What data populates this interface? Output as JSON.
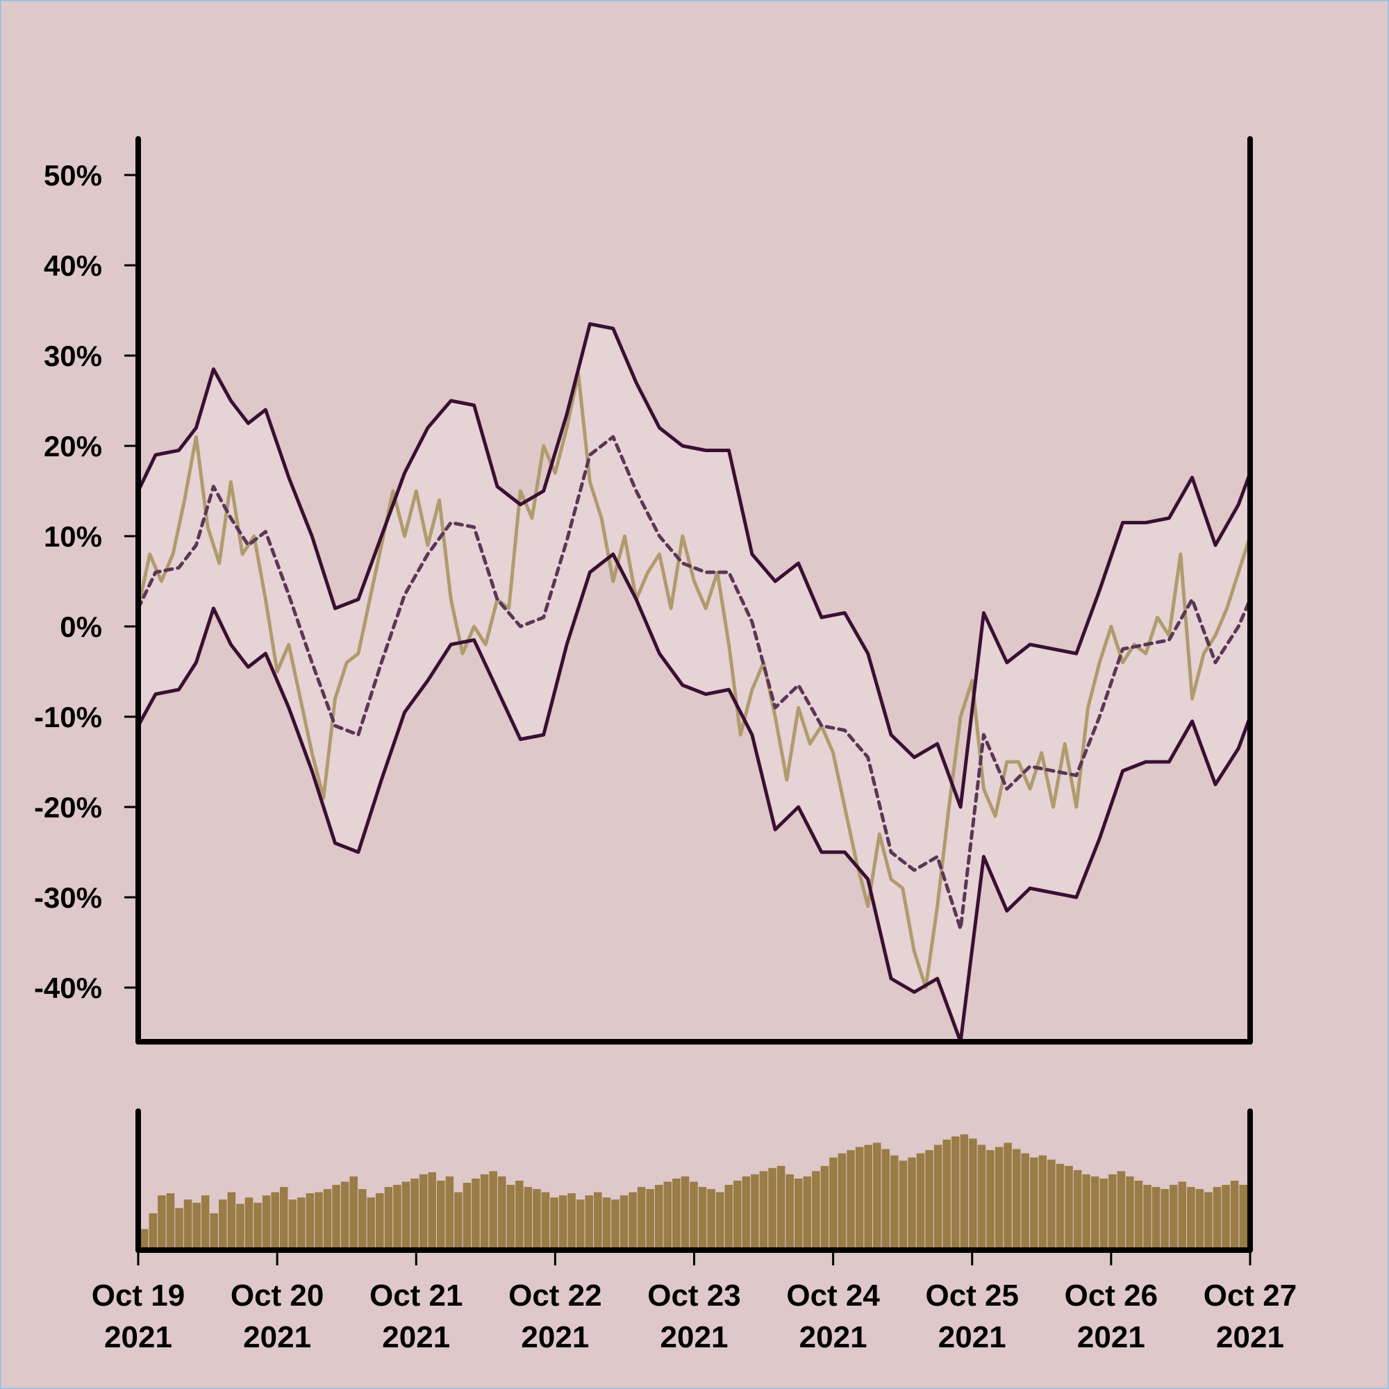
{
  "chart_data": [
    {
      "type": "line",
      "title": "",
      "xlabel": "",
      "ylabel": "",
      "ylim": [
        -46,
        54
      ],
      "xlim": [
        "2021-10-19",
        "2021-10-27"
      ],
      "grid": false,
      "legend": "none",
      "y_ticks": [
        50,
        40,
        30,
        20,
        10,
        0,
        -10,
        -20,
        -30,
        -40
      ],
      "y_tick_labels": [
        "50%",
        "40%",
        "30%",
        "20%",
        "10%",
        "0%",
        "-10%",
        "-20%",
        "-30%",
        "-40%"
      ],
      "x_ticks": [
        "2021-10-19",
        "2021-10-20",
        "2021-10-21",
        "2021-10-22",
        "2021-10-23",
        "2021-10-24",
        "2021-10-25",
        "2021-10-26",
        "2021-10-27"
      ],
      "x_tick_labels": [
        [
          "Oct 19",
          "2021"
        ],
        [
          "Oct 20",
          "2021"
        ],
        [
          "Oct 21",
          "2021"
        ],
        [
          "Oct 22",
          "2021"
        ],
        [
          "Oct 23",
          "2021"
        ],
        [
          "Oct 24",
          "2021"
        ],
        [
          "Oct 25",
          "2021"
        ],
        [
          "Oct 26",
          "2021"
        ],
        [
          "Oct 27",
          "2021"
        ]
      ],
      "band": {
        "color": "#e6d3d5",
        "x": [
          "2021-10-19 00:00",
          "2021-10-19 03:00",
          "2021-10-19 07:00",
          "2021-10-19 10:00",
          "2021-10-19 13:00",
          "2021-10-19 16:00",
          "2021-10-19 19:00",
          "2021-10-19 22:00",
          "2021-10-20 02:00",
          "2021-10-20 06:00",
          "2021-10-20 10:00",
          "2021-10-20 14:00",
          "2021-10-20 18:00",
          "2021-10-20 22:00",
          "2021-10-21 02:00",
          "2021-10-21 06:00",
          "2021-10-21 10:00",
          "2021-10-21 14:00",
          "2021-10-21 18:00",
          "2021-10-21 22:00",
          "2021-10-22 02:00",
          "2021-10-22 06:00",
          "2021-10-22 10:00",
          "2021-10-22 14:00",
          "2021-10-22 18:00",
          "2021-10-22 22:00",
          "2021-10-23 02:00",
          "2021-10-23 06:00",
          "2021-10-23 10:00",
          "2021-10-23 14:00",
          "2021-10-23 18:00",
          "2021-10-23 22:00",
          "2021-10-24 02:00",
          "2021-10-24 06:00",
          "2021-10-24 10:00",
          "2021-10-24 14:00",
          "2021-10-24 18:00",
          "2021-10-24 22:00",
          "2021-10-25 02:00",
          "2021-10-25 06:00",
          "2021-10-25 10:00",
          "2021-10-25 14:00",
          "2021-10-25 18:00",
          "2021-10-25 22:00",
          "2021-10-26 02:00",
          "2021-10-26 06:00",
          "2021-10-26 10:00",
          "2021-10-26 14:00",
          "2021-10-26 18:00",
          "2021-10-26 22:00",
          "2021-10-27 00:00"
        ],
        "upper": [
          15,
          19,
          19.5,
          22,
          28.5,
          25,
          22.5,
          24,
          16.5,
          10,
          2,
          3,
          10,
          17,
          22,
          25,
          24.5,
          15.5,
          13.5,
          15,
          23.5,
          33.5,
          33,
          27,
          22,
          20,
          19.5,
          19.5,
          8,
          5,
          7,
          1,
          1.5,
          -3,
          -12,
          -14.5,
          -13,
          -20,
          1.5,
          -4,
          -2,
          -2.5,
          -3,
          4,
          11.5,
          11.5,
          12,
          16.5,
          9,
          13.5,
          17
        ],
        "lower": [
          -11,
          -7.5,
          -7,
          -4,
          2,
          -2,
          -4.5,
          -3,
          -9,
          -16,
          -24,
          -25,
          -17,
          -9.5,
          -6,
          -2,
          -1.5,
          -7,
          -12.5,
          -12,
          -2,
          6,
          8,
          3,
          -3,
          -6.5,
          -7.5,
          -7,
          -12,
          -22.5,
          -20,
          -25,
          -25,
          -28,
          -39,
          -40.5,
          -39,
          -46,
          -25.5,
          -31.5,
          -29,
          -29.5,
          -30,
          -23.5,
          -16,
          -15,
          -15,
          -10.5,
          -17.5,
          -13.5,
          -10
        ]
      },
      "series": [
        {
          "color": "#b09b6e",
          "style": "solid",
          "x": [
            "2021-10-19 00:00",
            "2021-10-19 02:00",
            "2021-10-19 04:00",
            "2021-10-19 06:00",
            "2021-10-19 08:00",
            "2021-10-19 10:00",
            "2021-10-19 12:00",
            "2021-10-19 14:00",
            "2021-10-19 16:00",
            "2021-10-19 18:00",
            "2021-10-19 20:00",
            "2021-10-19 22:00",
            "2021-10-20 00:00",
            "2021-10-20 02:00",
            "2021-10-20 04:00",
            "2021-10-20 06:00",
            "2021-10-20 08:00",
            "2021-10-20 10:00",
            "2021-10-20 12:00",
            "2021-10-20 14:00",
            "2021-10-20 16:00",
            "2021-10-20 18:00",
            "2021-10-20 20:00",
            "2021-10-20 22:00",
            "2021-10-21 00:00",
            "2021-10-21 02:00",
            "2021-10-21 04:00",
            "2021-10-21 06:00",
            "2021-10-21 08:00",
            "2021-10-21 10:00",
            "2021-10-21 12:00",
            "2021-10-21 14:00",
            "2021-10-21 16:00",
            "2021-10-21 18:00",
            "2021-10-21 20:00",
            "2021-10-21 22:00",
            "2021-10-22 00:00",
            "2021-10-22 02:00",
            "2021-10-22 04:00",
            "2021-10-22 06:00",
            "2021-10-22 08:00",
            "2021-10-22 10:00",
            "2021-10-22 12:00",
            "2021-10-22 14:00",
            "2021-10-22 16:00",
            "2021-10-22 18:00",
            "2021-10-22 20:00",
            "2021-10-22 22:00",
            "2021-10-23 00:00",
            "2021-10-23 02:00",
            "2021-10-23 04:00",
            "2021-10-23 06:00",
            "2021-10-23 08:00",
            "2021-10-23 10:00",
            "2021-10-23 12:00",
            "2021-10-23 14:00",
            "2021-10-23 16:00",
            "2021-10-23 18:00",
            "2021-10-23 20:00",
            "2021-10-23 22:00",
            "2021-10-24 00:00",
            "2021-10-24 02:00",
            "2021-10-24 04:00",
            "2021-10-24 06:00",
            "2021-10-24 08:00",
            "2021-10-24 10:00",
            "2021-10-24 12:00",
            "2021-10-24 14:00",
            "2021-10-24 16:00",
            "2021-10-24 18:00",
            "2021-10-24 20:00",
            "2021-10-24 22:00",
            "2021-10-25 00:00",
            "2021-10-25 02:00",
            "2021-10-25 04:00",
            "2021-10-25 06:00",
            "2021-10-25 08:00",
            "2021-10-25 10:00",
            "2021-10-25 12:00",
            "2021-10-25 14:00",
            "2021-10-25 16:00",
            "2021-10-25 18:00",
            "2021-10-25 20:00",
            "2021-10-25 22:00",
            "2021-10-26 00:00",
            "2021-10-26 02:00",
            "2021-10-26 04:00",
            "2021-10-26 06:00",
            "2021-10-26 08:00",
            "2021-10-26 10:00",
            "2021-10-26 12:00",
            "2021-10-26 14:00",
            "2021-10-26 16:00",
            "2021-10-26 18:00",
            "2021-10-26 20:00",
            "2021-10-26 22:00",
            "2021-10-27 00:00"
          ],
          "values": [
            2,
            8,
            5,
            8,
            14,
            21,
            11,
            7,
            16,
            8,
            10,
            3,
            -5,
            -2,
            -8,
            -14,
            -19,
            -8,
            -4,
            -3,
            3,
            9,
            15,
            10,
            15,
            9,
            14,
            3,
            -3,
            0,
            -2,
            3,
            2,
            15,
            12,
            20,
            17,
            22,
            28,
            16,
            12,
            5,
            10,
            3,
            6,
            8,
            2,
            10,
            5,
            2,
            6,
            -2,
            -12,
            -7,
            -4,
            -10,
            -17,
            -9,
            -13,
            -11,
            -14,
            -20,
            -26,
            -31,
            -23,
            -28,
            -29,
            -36,
            -40,
            -31,
            -20,
            -10,
            -6,
            -18,
            -21,
            -15,
            -15,
            -18,
            -14,
            -20,
            -13,
            -20,
            -9,
            -4,
            0,
            -4,
            -2,
            -3,
            1,
            -1,
            8,
            -8,
            -3,
            -1,
            2,
            6,
            10
          ]
        },
        {
          "color": "#5b3656",
          "style": "dashed",
          "x": [
            "2021-10-19 00:00",
            "2021-10-19 03:00",
            "2021-10-19 07:00",
            "2021-10-19 10:00",
            "2021-10-19 13:00",
            "2021-10-19 16:00",
            "2021-10-19 19:00",
            "2021-10-19 22:00",
            "2021-10-20 02:00",
            "2021-10-20 06:00",
            "2021-10-20 10:00",
            "2021-10-20 14:00",
            "2021-10-20 18:00",
            "2021-10-20 22:00",
            "2021-10-21 02:00",
            "2021-10-21 06:00",
            "2021-10-21 10:00",
            "2021-10-21 14:00",
            "2021-10-21 18:00",
            "2021-10-21 22:00",
            "2021-10-22 02:00",
            "2021-10-22 06:00",
            "2021-10-22 10:00",
            "2021-10-22 14:00",
            "2021-10-22 18:00",
            "2021-10-22 22:00",
            "2021-10-23 02:00",
            "2021-10-23 06:00",
            "2021-10-23 10:00",
            "2021-10-23 14:00",
            "2021-10-23 18:00",
            "2021-10-23 22:00",
            "2021-10-24 02:00",
            "2021-10-24 06:00",
            "2021-10-24 10:00",
            "2021-10-24 14:00",
            "2021-10-24 18:00",
            "2021-10-24 22:00",
            "2021-10-25 02:00",
            "2021-10-25 06:00",
            "2021-10-25 10:00",
            "2021-10-25 14:00",
            "2021-10-25 18:00",
            "2021-10-25 22:00",
            "2021-10-26 02:00",
            "2021-10-26 06:00",
            "2021-10-26 10:00",
            "2021-10-26 14:00",
            "2021-10-26 18:00",
            "2021-10-26 22:00",
            "2021-10-27 00:00"
          ],
          "values": [
            2,
            6,
            6.5,
            9,
            15.5,
            12,
            9,
            10.5,
            3.5,
            -4,
            -11,
            -12,
            -4,
            3.5,
            8,
            11.5,
            11,
            3,
            0,
            1,
            9.5,
            19,
            21,
            15,
            10,
            7,
            6,
            6,
            0.5,
            -9,
            -6.5,
            -11,
            -11.5,
            -14.5,
            -25,
            -27,
            -25.5,
            -33.5,
            -12,
            -18,
            -15.5,
            -16,
            -16.5,
            -10,
            -2.5,
            -2,
            -1.5,
            3,
            -4,
            0,
            3
          ]
        },
        {
          "color": "#3a0f33",
          "style": "solid",
          "role": "upper",
          "x": "band.x",
          "values": "band.upper"
        },
        {
          "color": "#3a0f33",
          "style": "solid",
          "role": "lower",
          "x": "band.x",
          "values": "band.lower"
        }
      ]
    },
    {
      "type": "bar",
      "title": "",
      "color": "#997c46",
      "x_range": [
        "2021-10-19",
        "2021-10-27"
      ],
      "y_ticks": [],
      "values": [
        20,
        35,
        52,
        54,
        40,
        48,
        45,
        52,
        35,
        48,
        55,
        44,
        50,
        45,
        52,
        55,
        60,
        48,
        50,
        54,
        55,
        58,
        62,
        65,
        70,
        58,
        50,
        54,
        60,
        62,
        65,
        68,
        72,
        74,
        66,
        70,
        55,
        64,
        68,
        72,
        75,
        70,
        62,
        66,
        60,
        58,
        55,
        50,
        52,
        54,
        48,
        52,
        55,
        50,
        48,
        52,
        55,
        60,
        58,
        62,
        65,
        68,
        70,
        65,
        60,
        58,
        55,
        62,
        66,
        70,
        72,
        75,
        78,
        80,
        72,
        68,
        70,
        75,
        80,
        88,
        92,
        95,
        98,
        100,
        102,
        96,
        90,
        85,
        88,
        92,
        95,
        100,
        105,
        108,
        110,
        106,
        100,
        95,
        98,
        102,
        96,
        92,
        88,
        90,
        86,
        82,
        80,
        76,
        72,
        70,
        68,
        72,
        75,
        70,
        66,
        62,
        60,
        58,
        62,
        65,
        60,
        58,
        55,
        60,
        62,
        66,
        62
      ]
    }
  ]
}
